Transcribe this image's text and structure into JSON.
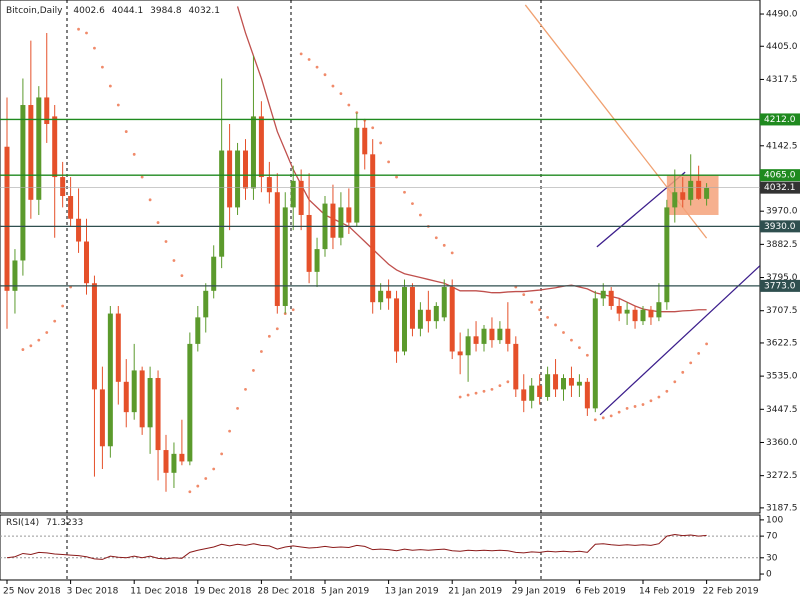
{
  "chart_data": [
    {
      "type": "candlestick",
      "title": "Bitcoin,Daily",
      "categories": [
        "25 Nov 2018",
        null,
        null,
        null,
        null,
        null,
        null,
        null,
        "3 Dec 2018",
        null,
        null,
        null,
        null,
        null,
        null,
        null,
        "11 Dec 2018",
        null,
        null,
        null,
        null,
        null,
        null,
        null,
        "19 Dec 2018",
        null,
        null,
        null,
        null,
        null,
        null,
        null,
        "28 Dec 2018",
        null,
        null,
        null,
        null,
        null,
        null,
        null,
        "5 Jan 2019",
        null,
        null,
        null,
        null,
        null,
        null,
        null,
        "13 Jan 2019",
        null,
        null,
        null,
        null,
        null,
        null,
        null,
        "21 Jan 2019",
        null,
        null,
        null,
        null,
        null,
        null,
        null,
        "29 Jan 2019",
        null,
        null,
        null,
        null,
        null,
        null,
        null,
        "6 Feb 2019",
        null,
        null,
        null,
        null,
        null,
        null,
        null,
        "14 Feb 2019",
        null,
        null,
        null,
        null,
        null,
        null,
        null,
        "22 Feb 2019"
      ],
      "open": [
        4140,
        3760,
        3840,
        4250,
        4000,
        4270,
        4220,
        4060,
        4010,
        3950,
        3890,
        3780,
        3500,
        3350,
        3700,
        3520,
        3440,
        3550,
        3400,
        3530,
        3340,
        3280,
        3330,
        3310,
        3620,
        3690,
        3760,
        3850,
        4130,
        3980,
        4130,
        4030,
        4220,
        4060,
        4020,
        3720,
        3980,
        4050,
        3960,
        3810,
        3870,
        3990,
        3900,
        3980,
        3940,
        4190,
        4120,
        3730,
        3760,
        3740,
        3600,
        3770,
        3660,
        3710,
        3680,
        3690,
        3770,
        3600,
        3590,
        3640,
        3620,
        3660,
        3630,
        3660,
        3620,
        3500,
        3470,
        3510,
        3480,
        3540,
        3500,
        3530,
        3510,
        3520,
        3450,
        3740,
        3760,
        3720,
        3700,
        3710,
        3680,
        3710,
        3690,
        3730,
        3980,
        4020,
        4000,
        4050,
        4002.6
      ],
      "high": [
        4270,
        3870,
        4320,
        4420,
        4300,
        4440,
        4250,
        4100,
        4060,
        4030,
        3950,
        3800,
        3560,
        3720,
        3720,
        3580,
        3620,
        3560,
        3560,
        3550,
        3380,
        3360,
        3420,
        3650,
        3720,
        3780,
        3880,
        4320,
        4200,
        4150,
        4160,
        4380,
        4260,
        4100,
        4070,
        4020,
        4090,
        4080,
        4070,
        3900,
        4010,
        4040,
        4020,
        4030,
        4230,
        4210,
        4160,
        3780,
        3790,
        3760,
        3790,
        3780,
        3730,
        3760,
        3730,
        3790,
        3790,
        3650,
        3660,
        3680,
        3670,
        3690,
        3680,
        3730,
        3640,
        3540,
        3530,
        3540,
        3560,
        3580,
        3540,
        3560,
        3540,
        3530,
        3760,
        3780,
        3770,
        3740,
        3730,
        3720,
        3720,
        3720,
        3780,
        4000,
        4080,
        4060,
        4120,
        4090,
        4044.1
      ],
      "low": [
        3660,
        3700,
        3800,
        3950,
        3960,
        4150,
        3900,
        3980,
        3930,
        3860,
        3750,
        3270,
        3290,
        3320,
        3460,
        3400,
        3420,
        3380,
        3330,
        3260,
        3230,
        3240,
        3300,
        3300,
        3600,
        3650,
        3740,
        3820,
        3920,
        3960,
        4000,
        4000,
        4020,
        3990,
        3700,
        3700,
        3920,
        3920,
        3780,
        3770,
        3850,
        3870,
        3880,
        3910,
        3930,
        4080,
        3700,
        3710,
        3710,
        3570,
        3590,
        3640,
        3640,
        3650,
        3660,
        3680,
        3580,
        3540,
        3520,
        3600,
        3600,
        3610,
        3620,
        3600,
        3480,
        3440,
        3450,
        3460,
        3470,
        3480,
        3470,
        3480,
        3480,
        3430,
        3440,
        3720,
        3710,
        3680,
        3670,
        3660,
        3670,
        3670,
        3680,
        3710,
        3940,
        3980,
        3985,
        4000,
        3984.8
      ],
      "close": [
        3760,
        3840,
        4250,
        4000,
        4270,
        4200,
        4060,
        4010,
        3950,
        3890,
        3780,
        3500,
        3350,
        3700,
        3520,
        3440,
        3550,
        3400,
        3530,
        3340,
        3280,
        3330,
        3310,
        3620,
        3690,
        3760,
        3850,
        4130,
        3980,
        4130,
        4030,
        4220,
        4060,
        4020,
        3720,
        3980,
        4050,
        3960,
        3810,
        3870,
        3990,
        3900,
        3980,
        3940,
        4190,
        4120,
        3730,
        3760,
        3740,
        3600,
        3770,
        3660,
        3710,
        3680,
        3720,
        3770,
        3600,
        3590,
        3640,
        3620,
        3660,
        3630,
        3660,
        3620,
        3500,
        3470,
        3510,
        3480,
        3540,
        3500,
        3530,
        3510,
        3520,
        3450,
        3740,
        3760,
        3720,
        3700,
        3710,
        3680,
        3710,
        3690,
        3730,
        3980,
        4020,
        4000,
        4050,
        4002.6,
        4032.1
      ],
      "up_color": "#5b9a2c",
      "down_color": "#e5502a",
      "ylim": [
        3174,
        4527
      ],
      "yticks": [
        {
          "value": 4490,
          "label": "4490.0"
        },
        {
          "value": 4405,
          "label": "4405.0"
        },
        4317.5,
        4142.5,
        {
          "value": 3970,
          "label": "3970.0"
        },
        3882.5,
        {
          "value": 3795,
          "label": "3795.0"
        },
        3707.5,
        3622.5,
        {
          "value": 3535,
          "label": "3535.0"
        },
        3447.5,
        {
          "value": 3360,
          "label": "3360.0"
        },
        3272.5,
        3187.5
      ],
      "ma": {
        "color": "#c0504d",
        "values": [
          null,
          null,
          null,
          null,
          null,
          null,
          null,
          null,
          null,
          null,
          null,
          null,
          null,
          null,
          null,
          null,
          null,
          null,
          null,
          null,
          null,
          null,
          null,
          null,
          null,
          null,
          null,
          null,
          null,
          4510,
          4440,
          4380,
          4320,
          4250,
          4180,
          4130,
          4080,
          4040,
          4000,
          3980,
          3960,
          3950,
          3940,
          3930,
          3910,
          3890,
          3870,
          3850,
          3830,
          3815,
          3805,
          3800,
          3795,
          3790,
          3785,
          3780,
          3770,
          3760,
          3760,
          3760,
          3758,
          3755,
          3755,
          3757,
          3758,
          3758,
          3760,
          3762,
          3765,
          3768,
          3772,
          3775,
          3770,
          3765,
          3755,
          3750,
          3745,
          3740,
          3730,
          3720,
          3712,
          3708,
          3705,
          3705,
          3705,
          3707,
          3708,
          3710,
          3710
        ]
      },
      "sar": {
        "color": "#f08a6a",
        "values": [
          null,
          null,
          3605,
          3615,
          3630,
          3650,
          3680,
          3720,
          3770,
          4450,
          4440,
          4400,
          4350,
          4300,
          4250,
          4180,
          4120,
          4060,
          4000,
          3940,
          3890,
          3840,
          3800,
          3230,
          3245,
          3265,
          3290,
          3330,
          3390,
          3450,
          3500,
          3550,
          3600,
          3640,
          3660,
          3700,
          3710,
          4385,
          4370,
          4350,
          4330,
          4300,
          4280,
          4250,
          4230,
          4210,
          4190,
          4150,
          4100,
          4060,
          4020,
          3990,
          3960,
          3930,
          3900,
          3880,
          3860,
          3480,
          3485,
          3490,
          3495,
          3500,
          3510,
          3520,
          3770,
          3750,
          3730,
          3710,
          3690,
          3670,
          3650,
          3630,
          3610,
          3590,
          3420,
          3425,
          3430,
          3440,
          3450,
          3455,
          3460,
          3470,
          3480,
          3495,
          3520,
          3545,
          3570,
          3595,
          3620
        ]
      },
      "levels": [
        {
          "value": 4212,
          "label": "4212.0",
          "color": "#1f8a1f"
        },
        {
          "value": 4065,
          "label": "4065.0",
          "color": "#1f8a1f"
        },
        {
          "value": 3930,
          "label": "3930.0",
          "color": "#2f4f4f"
        },
        {
          "value": 3773,
          "label": "3773.0",
          "color": "#2f4f4f"
        }
      ],
      "drawings": [
        {
          "type": "line",
          "color": "#f0a070",
          "x": [
            65.2,
            88
          ],
          "y": [
            4514,
            3899
          ]
        },
        {
          "type": "line",
          "color": "#3c1e8c",
          "x": [
            74.2,
            85.3
          ],
          "y": [
            3876,
            4073
          ]
        },
        {
          "type": "line",
          "color": "#3c1e8c",
          "x": [
            74.6,
            94.7
          ],
          "y": [
            3433,
            3826
          ]
        },
        {
          "type": "rect",
          "color": "#f4a27a",
          "x": [
            83,
            89.5
          ],
          "y": [
            4065,
            3960
          ]
        }
      ]
    },
    {
      "type": "line",
      "title": "RSI(14)",
      "color": "#8b1a1a",
      "values": [
        30,
        32,
        38,
        36,
        40,
        39,
        37,
        36,
        35,
        34,
        32,
        28,
        27,
        33,
        31,
        30,
        33,
        30,
        33,
        29,
        28,
        30,
        29,
        40,
        44,
        47,
        50,
        55,
        52,
        55,
        53,
        56,
        53,
        52,
        46,
        50,
        52,
        50,
        48,
        49,
        51,
        49,
        50,
        49,
        53,
        51,
        45,
        46,
        45,
        43,
        46,
        44,
        45,
        44,
        45,
        46,
        43,
        42,
        44,
        43,
        44,
        43,
        44,
        43,
        40,
        39,
        41,
        40,
        42,
        41,
        42,
        41,
        42,
        40,
        55,
        56,
        54,
        53,
        54,
        53,
        54,
        53,
        56,
        70,
        73,
        71,
        72,
        70,
        71.3233
      ],
      "ylim": [
        -11,
        109
      ],
      "yticks": [
        100,
        70,
        30,
        0
      ],
      "levels": [
        70,
        30
      ]
    }
  ]
}
